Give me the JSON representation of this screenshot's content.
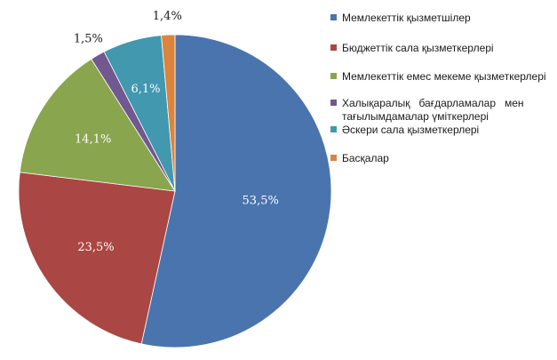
{
  "chart_data": {
    "type": "pie",
    "title": "",
    "legend_position": "right",
    "start_angle_deg": 0,
    "direction": "clockwise",
    "slices": [
      {
        "name": "Мемлекеттік қызметшілер",
        "value": 53.5,
        "label": "53,5%",
        "color": "#4a74ad"
      },
      {
        "name": "Бюджеттік сала қызметкерлері",
        "value": 23.5,
        "label": "23,5%",
        "color": "#aa4643"
      },
      {
        "name": "Мемлекеттік емес мекеме қызметкерлері",
        "value": 14.1,
        "label": "14,1%",
        "color": "#89a54e"
      },
      {
        "name": "Халықаралық бағдарламалар мен тағылымдамалар үміткерлері",
        "value": 1.5,
        "label": "1,5%",
        "color": "#71588f"
      },
      {
        "name": "Әскери сала қызметкерлері",
        "value": 6.1,
        "label": "6,1%",
        "color": "#4198af"
      },
      {
        "name": "Басқалар",
        "value": 1.4,
        "label": "1,4%",
        "color": "#db843d"
      }
    ]
  }
}
